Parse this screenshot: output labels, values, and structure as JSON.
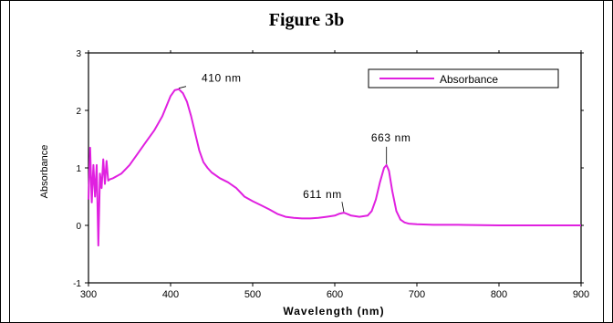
{
  "figure_title": "Figure 3b",
  "chart_data": {
    "type": "line",
    "xlabel": "Wavelength (nm)",
    "ylabel": "Absorbance",
    "xlim": [
      300,
      900
    ],
    "ylim": [
      -1,
      3
    ],
    "x_ticks": [
      300,
      400,
      500,
      600,
      700,
      800,
      900
    ],
    "y_ticks": [
      -1,
      0,
      1,
      2,
      3
    ],
    "grid": false,
    "legend_position": "top-right",
    "series": [
      {
        "name": "Absorbance",
        "color": "#e020e0",
        "x": [
          300,
          302,
          304,
          306,
          308,
          310,
          312,
          314,
          316,
          318,
          320,
          322,
          324,
          326,
          330,
          340,
          350,
          360,
          370,
          380,
          390,
          400,
          405,
          410,
          415,
          420,
          425,
          430,
          435,
          440,
          445,
          450,
          460,
          470,
          480,
          490,
          500,
          510,
          520,
          530,
          540,
          550,
          560,
          570,
          580,
          590,
          600,
          605,
          611,
          615,
          620,
          630,
          640,
          645,
          650,
          655,
          660,
          663,
          666,
          670,
          675,
          680,
          685,
          690,
          700,
          720,
          750,
          800,
          850,
          900
        ],
        "y": [
          0.45,
          1.35,
          0.4,
          1.05,
          0.5,
          1.05,
          -0.35,
          0.9,
          0.65,
          1.15,
          0.72,
          1.12,
          0.78,
          0.8,
          0.82,
          0.9,
          1.05,
          1.25,
          1.45,
          1.65,
          1.9,
          2.25,
          2.35,
          2.37,
          2.3,
          2.15,
          1.9,
          1.6,
          1.3,
          1.1,
          1.0,
          0.92,
          0.82,
          0.75,
          0.65,
          0.5,
          0.42,
          0.35,
          0.28,
          0.2,
          0.15,
          0.13,
          0.12,
          0.12,
          0.13,
          0.15,
          0.17,
          0.2,
          0.22,
          0.2,
          0.17,
          0.15,
          0.17,
          0.25,
          0.45,
          0.75,
          1.0,
          1.05,
          0.95,
          0.6,
          0.25,
          0.1,
          0.05,
          0.03,
          0.02,
          0.01,
          0.01,
          0.0,
          0.0,
          0.0
        ]
      }
    ],
    "annotations": [
      {
        "text": "410 nm",
        "x": 410,
        "y": 2.37
      },
      {
        "text": "611 nm",
        "x": 611,
        "y": 0.22
      },
      {
        "text": "663 nm",
        "x": 663,
        "y": 1.05
      }
    ]
  }
}
